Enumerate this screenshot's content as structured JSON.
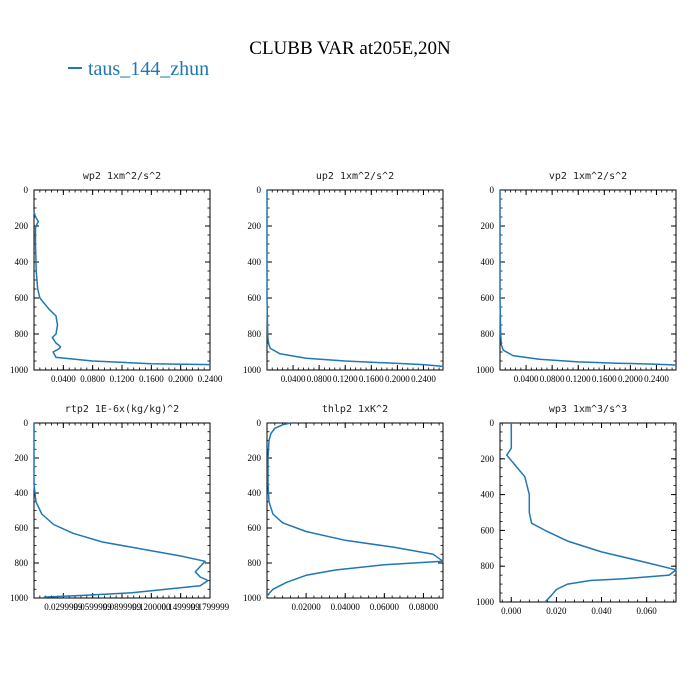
{
  "title": "CLUBB VAR at205E,20N",
  "legend": {
    "label": "taus_144_zhun",
    "color": "#1f77b4"
  },
  "chart_data": [
    {
      "type": "line",
      "title": "wp2   1xm^2/s^2",
      "xlim": [
        0.0,
        0.24
      ],
      "ylim": [
        1000,
        0
      ],
      "xticks": [
        "0.0400",
        "0.0800",
        "0.1200",
        "0.1600",
        "0.2000",
        "0.2400"
      ],
      "xtick_values": [
        0.04,
        0.08,
        0.12,
        0.16,
        0.2,
        0.24
      ],
      "yticks": [
        "0",
        "200",
        "400",
        "600",
        "800",
        "1000"
      ],
      "ytick_values": [
        0,
        200,
        400,
        600,
        800,
        1000
      ],
      "series": [
        {
          "x": [
            0.0,
            0.002,
            0.006,
            0.004,
            0.002,
            0.002,
            0.003,
            0.005,
            0.008,
            0.02,
            0.03,
            0.032,
            0.03,
            0.025,
            0.03,
            0.036,
            0.035,
            0.026,
            0.03,
            0.08,
            0.16,
            0.24
          ],
          "y": [
            120,
            150,
            175,
            190,
            210,
            300,
            450,
            550,
            600,
            660,
            700,
            750,
            800,
            820,
            850,
            870,
            880,
            900,
            930,
            950,
            965,
            970
          ]
        }
      ]
    },
    {
      "type": "line",
      "title": "up2   1xm^2/s^2",
      "xlim": [
        0.0,
        0.27
      ],
      "ylim": [
        1000,
        0
      ],
      "xticks": [
        "0.0400",
        "0.0800",
        "0.1200",
        "0.1600",
        "0.2000",
        "0.2400"
      ],
      "xtick_values": [
        0.04,
        0.08,
        0.12,
        0.16,
        0.2,
        0.24
      ],
      "yticks": [
        "0",
        "200",
        "400",
        "600",
        "800",
        "1000"
      ],
      "ytick_values": [
        0,
        200,
        400,
        600,
        800,
        1000
      ],
      "series": [
        {
          "x": [
            0.0,
            0.0,
            0.001,
            0.002,
            0.005,
            0.02,
            0.06,
            0.12,
            0.18,
            0.24,
            0.27
          ],
          "y": [
            0,
            600,
            800,
            850,
            880,
            910,
            935,
            950,
            960,
            970,
            980
          ]
        }
      ]
    },
    {
      "type": "line",
      "title": "vp2   1xm^2/s^2",
      "xlim": [
        0.0,
        0.27
      ],
      "ylim": [
        1000,
        0
      ],
      "xticks": [
        "0.0400",
        "0.0800",
        "0.1200",
        "0.1600",
        "0.2000",
        "0.2400"
      ],
      "xtick_values": [
        0.04,
        0.08,
        0.12,
        0.16,
        0.2,
        0.24
      ],
      "yticks": [
        "0",
        "200",
        "400",
        "600",
        "800",
        "1000"
      ],
      "ytick_values": [
        0,
        200,
        400,
        600,
        800,
        1000
      ],
      "series": [
        {
          "x": [
            0.0,
            0.0,
            0.001,
            0.002,
            0.005,
            0.02,
            0.06,
            0.12,
            0.18,
            0.24,
            0.27
          ],
          "y": [
            0,
            600,
            800,
            860,
            890,
            920,
            940,
            955,
            962,
            968,
            972
          ]
        }
      ]
    },
    {
      "type": "line",
      "title": "rtp2   1E-6x(kg/kg)^2",
      "xlim": [
        0.0,
        0.18
      ],
      "ylim": [
        1000,
        0
      ],
      "xticks": [
        "0.0299999",
        "0.0599999",
        "0.0899999",
        "0.1200000",
        "0.1499999",
        "0.1799999"
      ],
      "xtick_values": [
        0.03,
        0.06,
        0.09,
        0.12,
        0.15,
        0.18
      ],
      "yticks": [
        "0",
        "200",
        "400",
        "600",
        "800",
        "1000"
      ],
      "ytick_values": [
        0,
        200,
        400,
        600,
        800,
        1000
      ],
      "series": [
        {
          "x": [
            0.0,
            0.0,
            0.002,
            0.008,
            0.02,
            0.04,
            0.07,
            0.11,
            0.15,
            0.175,
            0.17,
            0.165,
            0.17,
            0.178,
            0.17,
            0.1,
            0.05,
            0.01
          ],
          "y": [
            0,
            350,
            450,
            520,
            580,
            630,
            680,
            720,
            760,
            790,
            820,
            850,
            880,
            900,
            930,
            970,
            985,
            995
          ]
        }
      ]
    },
    {
      "type": "line",
      "title": "thlp2   1xK^2",
      "xlim": [
        0.0,
        0.09
      ],
      "ylim": [
        1000,
        0
      ],
      "xticks": [
        "0.02000",
        "0.04000",
        "0.06000",
        "0.08000"
      ],
      "xtick_values": [
        0.02,
        0.04,
        0.06,
        0.08
      ],
      "yticks": [
        "0",
        "200",
        "400",
        "600",
        "800",
        "1000"
      ],
      "ytick_values": [
        0,
        200,
        400,
        600,
        800,
        1000
      ],
      "series": [
        {
          "x": [
            0.012,
            0.008,
            0.004,
            0.002,
            0.001,
            0.0005,
            0.0005,
            0.001,
            0.003,
            0.008,
            0.02,
            0.04,
            0.065,
            0.085,
            0.09,
            0.06,
            0.035,
            0.02,
            0.01,
            0.003,
            0.001,
            0.0005
          ],
          "y": [
            0,
            10,
            30,
            60,
            100,
            200,
            350,
            450,
            520,
            570,
            620,
            670,
            710,
            750,
            790,
            810,
            840,
            870,
            910,
            950,
            975,
            985
          ]
        }
      ]
    },
    {
      "type": "line",
      "title": "wp3   1xm^3/s^3",
      "xlim": [
        -0.005,
        0.073
      ],
      "ylim": [
        1000,
        0
      ],
      "xticks": [
        "0.000",
        "0.020",
        "0.040",
        "0.060"
      ],
      "xtick_values": [
        0.0,
        0.02,
        0.04,
        0.06
      ],
      "yticks": [
        "0",
        "200",
        "400",
        "600",
        "800",
        "1000"
      ],
      "ytick_values": [
        0,
        200,
        400,
        600,
        800,
        1000
      ],
      "series": [
        {
          "x": [
            0.0,
            0.0,
            -0.002,
            0.002,
            0.006,
            0.008,
            0.008,
            0.009,
            0.015,
            0.025,
            0.04,
            0.06,
            0.073,
            0.07,
            0.05,
            0.035,
            0.025,
            0.02,
            0.018,
            0.015
          ],
          "y": [
            0,
            140,
            180,
            240,
            300,
            400,
            500,
            560,
            600,
            660,
            720,
            780,
            820,
            850,
            870,
            880,
            900,
            930,
            960,
            1000
          ]
        }
      ]
    }
  ]
}
